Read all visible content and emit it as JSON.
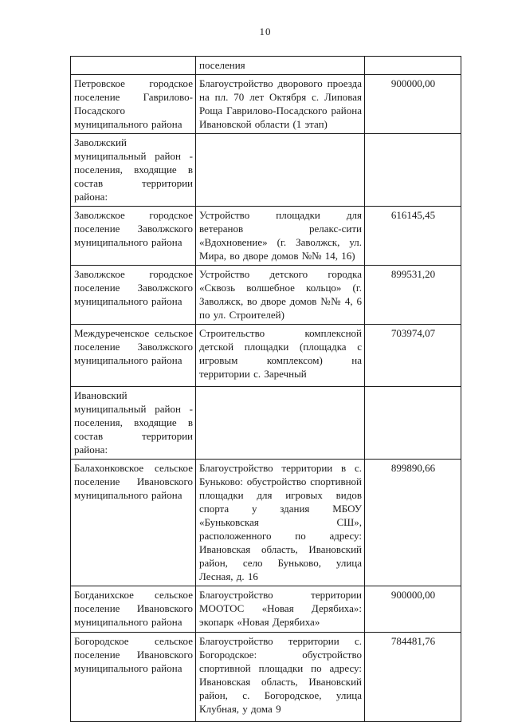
{
  "page": {
    "number": "10"
  },
  "table": {
    "columns": [
      "municipality",
      "project",
      "amount"
    ],
    "rows": [
      {
        "municipality": "",
        "project": "поселения",
        "amount": ""
      },
      {
        "municipality": "Петровское городское поселение Гаврилово-Посадского муниципального района",
        "project": "Благоустройство дворового проезда на пл. 70 лет Октября с. Липовая Роща Гаврилово-Посадского района Ивановской области (1 этап)",
        "amount": "900000,00"
      },
      {
        "municipality": "Заволжский муниципальный район - поселения, входящие в состав территории района:",
        "project": "",
        "amount": ""
      },
      {
        "municipality": "Заволжское городское поселение Заволжского муниципального района",
        "project": "Устройство площадки для ветеранов релакс-сити «Вдохновение» (г. Заволжск, ул. Мира, во дворе домов №№ 14, 16)",
        "amount": "616145,45"
      },
      {
        "municipality": "Заволжское городское поселение Заволжского муниципального района",
        "project": "Устройство детского городка «Сквозь волшебное кольцо» (г. Заволжск, во дворе домов №№ 4, 6 по ул. Строителей)",
        "amount": "899531,20"
      },
      {
        "municipality": "Междуреченское сельское поселение Заволжского муниципального района",
        "project": "Строительство комплексной детской площадки (площадка с игровым комплексом) на территории с. Заречный",
        "amount": "703974,07"
      },
      {
        "municipality": "Ивановский муниципальный район - поселения, входящие в состав территории района:",
        "project": "",
        "amount": ""
      },
      {
        "municipality": "Балахонковское сельское поселение Ивановского муниципального района",
        "project": "Благоустройство территории в с. Буньково: обустройство спортивной площадки для игровых видов спорта у здания МБОУ «Буньковская СШ», расположенного по адресу: Ивановская область, Ивановский район, село Буньково, улица Лесная, д. 16",
        "amount": "899890,66"
      },
      {
        "municipality": "Богданихское сельское поселение Ивановского муниципального района",
        "project": "Благоустройство территории МООТОС «Новая Дерябиха»: экопарк «Новая Дерябиха»",
        "amount": "900000,00"
      },
      {
        "municipality": "Богородское сельское поселение Ивановского муниципального района",
        "project": "Благоустройство территории с. Богородское: обустройство спортивной площадки по адресу: Ивановская область, Ивановский район, с. Богородское, улица Клубная, у дома 9",
        "amount": "784481,76"
      }
    ]
  }
}
